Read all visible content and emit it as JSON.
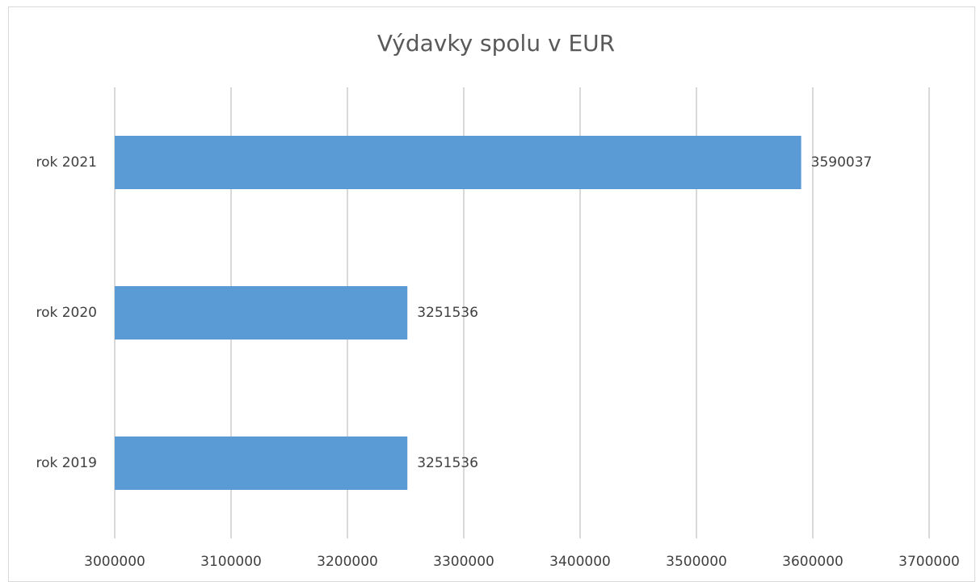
{
  "chart_data": {
    "type": "bar",
    "orientation": "horizontal",
    "title": "Výdavky spolu v EUR",
    "categories": [
      "rok 2019",
      "rok 2020",
      "rok 2021"
    ],
    "values": [
      3251536,
      3251536,
      3590037
    ],
    "color": "#5b9bd5",
    "xlim": [
      3000000,
      3700000
    ],
    "xticks": [
      3000000,
      3100000,
      3200000,
      3300000,
      3400000,
      3500000,
      3600000,
      3700000
    ],
    "grid": true
  }
}
